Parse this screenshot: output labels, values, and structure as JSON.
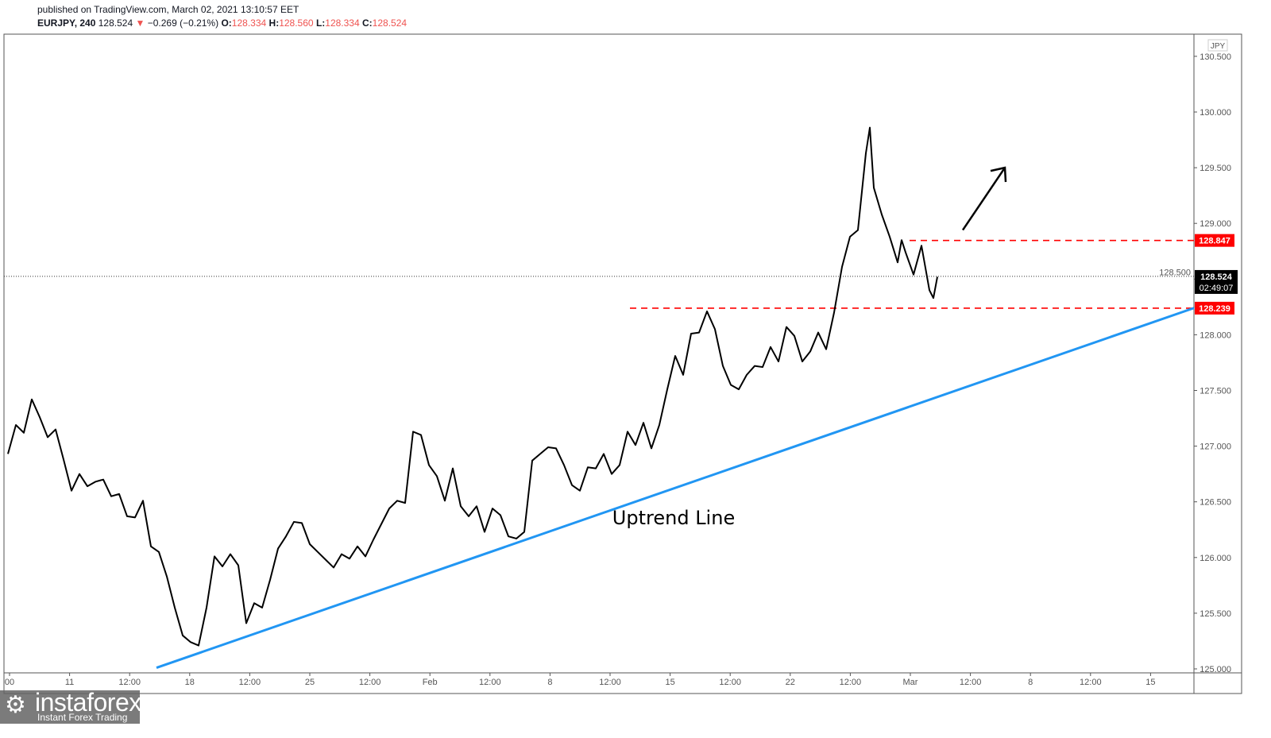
{
  "header": {
    "published": "published on TradingView.com, March 02, 2021 13:10:57 EET",
    "symbol": "EURJPY, 240",
    "last": "128.524",
    "change": "−0.269 (−0.21%)",
    "o_label": "O:",
    "o": "128.334",
    "h_label": "H:",
    "h": "128.560",
    "l_label": "L:",
    "l": "128.334",
    "c_label": "C:",
    "c": "128.524"
  },
  "logo": {
    "name": "instaforex",
    "tagline": "Instant Forex Trading"
  },
  "chart_data": {
    "type": "line",
    "title": "EURJPY, 240",
    "currency": "JPY",
    "ylim": [
      124.97,
      130.71
    ],
    "yticks": [
      "125.000",
      "125.500",
      "126.000",
      "126.500",
      "127.000",
      "127.500",
      "128.000",
      "128.500",
      "129.000",
      "129.500",
      "130.000",
      "130.500"
    ],
    "xticks": [
      "00",
      "11",
      "12:00",
      "18",
      "12:00",
      "25",
      "12:00",
      "Feb",
      "12:00",
      "8",
      "12:00",
      "15",
      "12:00",
      "22",
      "12:00",
      "Mar",
      "12:00",
      "8",
      "12:00",
      "15"
    ],
    "x": [
      1,
      2,
      3,
      4,
      5,
      6,
      7,
      8,
      9,
      10,
      11,
      12,
      13,
      14,
      15,
      16,
      17,
      18,
      19,
      20,
      21,
      22,
      23,
      24,
      25,
      26,
      27,
      28,
      29,
      30,
      31,
      32,
      33,
      34,
      35,
      36,
      37,
      38,
      39,
      40,
      41,
      42,
      43,
      44,
      45,
      46,
      47,
      48,
      49,
      50,
      51,
      52,
      53,
      54,
      55,
      56,
      57,
      58,
      59,
      60,
      61,
      62,
      63,
      64,
      65,
      66,
      67,
      68,
      69,
      70,
      71,
      72,
      73,
      74,
      75,
      76,
      77,
      78,
      79,
      80,
      81,
      82,
      83,
      84,
      85,
      86,
      87,
      88,
      89,
      90,
      91,
      92,
      93,
      94,
      95,
      96,
      97,
      98,
      99,
      100,
      101,
      102,
      103,
      104,
      105,
      106,
      107,
      108,
      109,
      109.5,
      110,
      111,
      112,
      113,
      113.5,
      114,
      115,
      116,
      117,
      117.5,
      118
    ],
    "values": [
      126.93,
      127.19,
      127.12,
      127.42,
      127.26,
      127.08,
      127.15,
      126.88,
      126.6,
      126.75,
      126.64,
      126.68,
      126.7,
      126.55,
      126.57,
      126.37,
      126.36,
      126.51,
      126.1,
      126.05,
      125.83,
      125.55,
      125.3,
      125.24,
      125.21,
      125.55,
      126.01,
      125.92,
      126.03,
      125.93,
      125.41,
      125.59,
      125.55,
      125.8,
      126.08,
      126.19,
      126.32,
      126.31,
      126.12,
      126.05,
      125.98,
      125.91,
      126.03,
      125.99,
      126.1,
      126.01,
      126.16,
      126.3,
      126.44,
      126.51,
      126.49,
      127.13,
      127.1,
      126.83,
      126.73,
      126.51,
      126.8,
      126.46,
      126.37,
      126.46,
      126.23,
      126.44,
      126.38,
      126.19,
      126.17,
      126.23,
      126.87,
      126.93,
      126.99,
      126.98,
      126.83,
      126.65,
      126.6,
      126.81,
      126.8,
      126.93,
      126.75,
      126.83,
      127.13,
      127.01,
      127.21,
      126.98,
      127.19,
      127.51,
      127.81,
      127.64,
      128.01,
      128.02,
      128.21,
      128.05,
      127.72,
      127.55,
      127.51,
      127.64,
      127.72,
      127.71,
      127.89,
      127.76,
      128.07,
      127.99,
      127.76,
      127.85,
      128.02,
      127.87,
      128.2,
      128.61,
      128.88,
      128.94,
      129.63,
      129.86,
      129.32,
      129.08,
      128.88,
      128.65,
      128.85,
      128.74,
      128.54,
      128.8,
      128.4,
      128.33,
      128.52
    ],
    "current_price": {
      "value": 128.524,
      "label": "128.524",
      "countdown": "02:49:07"
    },
    "levels": [
      {
        "value": 128.847,
        "label": "128.847",
        "color": "#ff0000",
        "from_x": 114.5
      },
      {
        "value": 128.239,
        "label": "128.239",
        "color": "#ff0000",
        "from_x": 79.3
      }
    ],
    "trendline": {
      "label": "Uptrend Line",
      "color": "#2196f3",
      "x": [
        19.7,
        150.3
      ],
      "y": [
        125.01,
        128.24
      ]
    },
    "arrow": {
      "x": [
        121.2,
        126.5
      ],
      "y": [
        128.94,
        129.5
      ]
    }
  }
}
